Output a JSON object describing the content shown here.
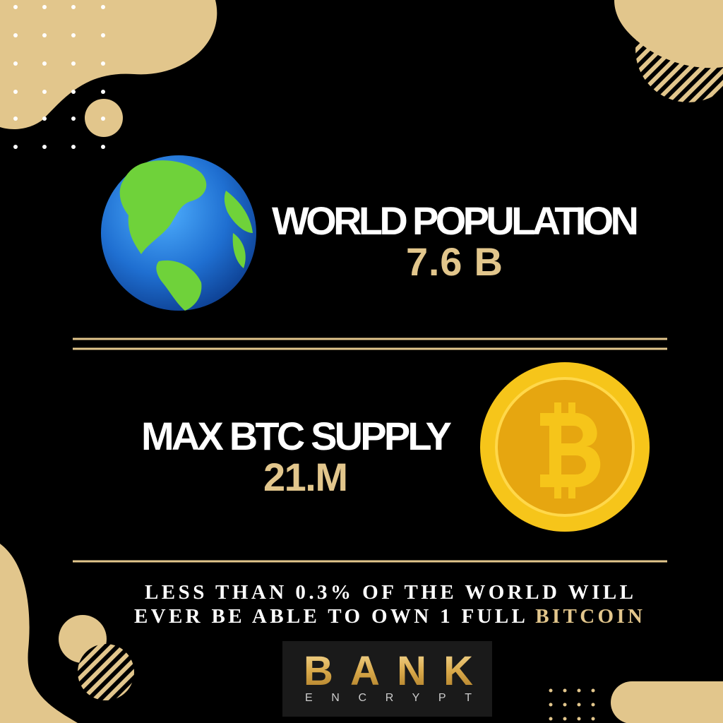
{
  "stats": [
    {
      "label": "WORLD POPULATION",
      "value": "7.6 B"
    },
    {
      "label": "MAX BTC SUPPLY",
      "value": "21.M"
    }
  ],
  "footnote": {
    "line1": "LESS THAN 0.3% OF THE WORLD WILL",
    "line2": "EVER BE ABLE TO OWN 1 FULL",
    "highlight": "BITCOIN"
  },
  "logo": {
    "name": "BANK",
    "tagline": "ENCRYPT"
  }
}
